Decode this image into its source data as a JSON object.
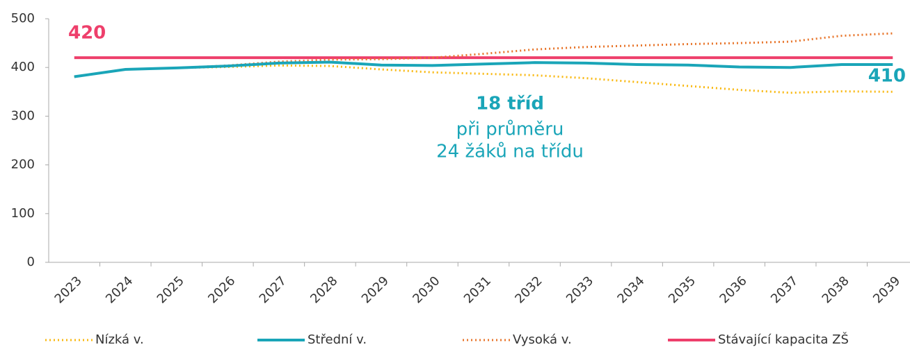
{
  "chart_data": {
    "type": "line",
    "categories": [
      "2023",
      "2024",
      "2025",
      "2026",
      "2027",
      "2028",
      "2029",
      "2030",
      "2031",
      "2032",
      "2033",
      "2034",
      "2035",
      "2036",
      "2037",
      "2038",
      "2039"
    ],
    "series": [
      {
        "name": "Nízká v.",
        "color": "#f9b913",
        "style": "dotted",
        "values": [
          381,
          396,
          399,
          401,
          404,
          403,
          396,
          390,
          387,
          384,
          378,
          370,
          362,
          354,
          348,
          351,
          350
        ]
      },
      {
        "name": "Střední v.",
        "color": "#1aa5b8",
        "style": "solid",
        "values": [
          381,
          396,
          399,
          403,
          409,
          411,
          405,
          404,
          407,
          410,
          409,
          406,
          405,
          401,
          400,
          406,
          406
        ]
      },
      {
        "name": "Vysoká v.",
        "color": "#e8762c",
        "style": "dotted",
        "values": [
          381,
          396,
          399,
          404,
          412,
          416,
          417,
          420,
          428,
          437,
          442,
          445,
          448,
          450,
          453,
          465,
          470
        ]
      },
      {
        "name": "Stávající kapacita ZŠ",
        "color": "#ee3f6b",
        "style": "solid",
        "values": [
          420,
          420,
          420,
          420,
          420,
          420,
          420,
          420,
          420,
          420,
          420,
          420,
          420,
          420,
          420,
          420,
          420
        ]
      }
    ],
    "annotations": [
      "420",
      "410",
      "18 tříd",
      "při průměru",
      "24 žáků na třídu"
    ],
    "ylim": [
      0,
      500
    ],
    "yticks": [
      0,
      100,
      200,
      300,
      400,
      500
    ],
    "grid": false
  }
}
